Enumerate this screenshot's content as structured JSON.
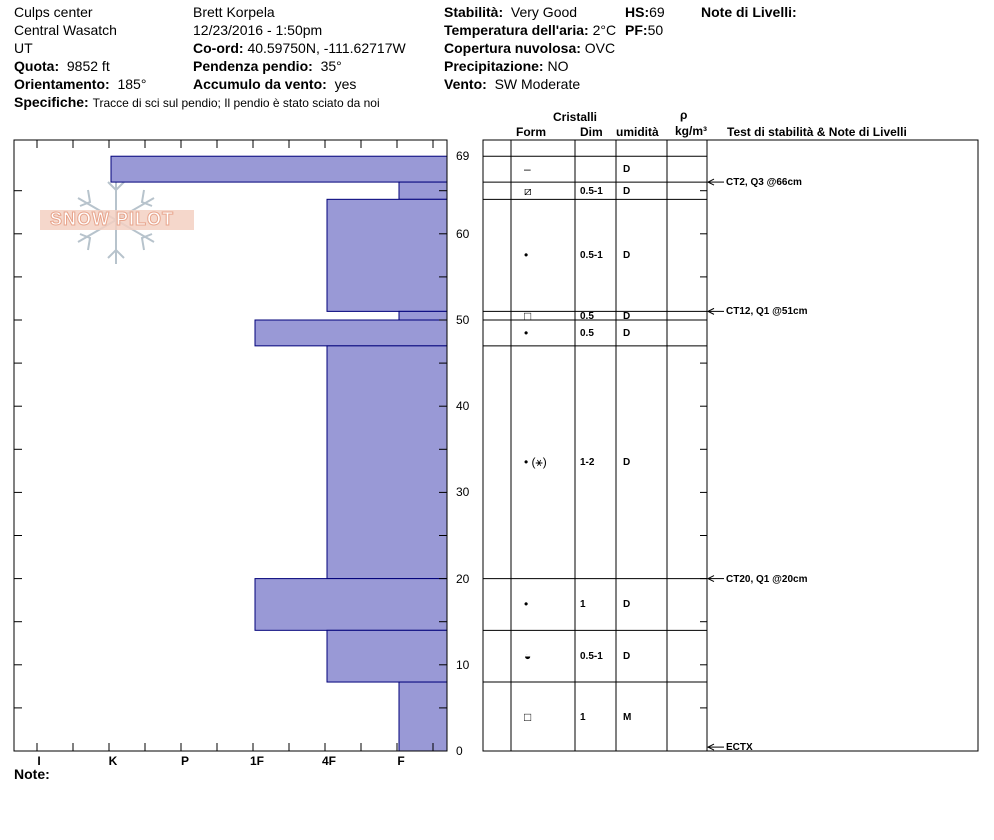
{
  "header": {
    "location": "Culps center",
    "range": "Central Wasatch",
    "state": "UT",
    "observer": "Brett  Korpela",
    "datetime": "12/23/2016 - 1:50pm",
    "coord_label": "Co-ord:",
    "coord_value": "40.59750N, -111.62717W",
    "elev_label": "Quota:",
    "elev_value": "9852 ft",
    "slope_label": "Pendenza pendio:",
    "slope_value": "35°",
    "aspect_label": "Orientamento:",
    "aspect_value": "185°",
    "wind_load_label": "Accumulo da vento:",
    "wind_load_value": "yes",
    "specifics_label": "Specifiche:",
    "specifics_value": "Tracce di sci sul pendio;  Il pendio è stato sciato da noi",
    "stability_label": "Stabilità:",
    "stability_value": "Very Good",
    "air_temp_label": "Temperatura dell'aria:",
    "air_temp_value": "2°C",
    "cloud_label": "Copertura nuvolosa:",
    "cloud_value": "OVC",
    "precip_label": "Precipitazione:",
    "precip_value": "NO",
    "wind_label": "Vento:",
    "wind_value": "SW Moderate",
    "hs_label": "HS:",
    "hs_value": "69",
    "pf_label": "PF:",
    "pf_value": "50",
    "layer_notes_label": "Note di Livelli:"
  },
  "logo_text": "SNOW PILOT",
  "table_headers": {
    "crystals": "Cristalli",
    "form": "Form",
    "size": "Dim",
    "moisture": "umidità",
    "rho": "ρ",
    "density_unit": "kg/m³",
    "tests": "Test di stabilità & Note di Livelli"
  },
  "hardness_labels": [
    "I",
    "K",
    "P",
    "1F",
    "4F",
    "F"
  ],
  "depth_ticks": [
    "69",
    "60",
    "50",
    "40",
    "30",
    "20",
    "10",
    "0"
  ],
  "note_label": "Note:",
  "layers": [
    {
      "top": 69,
      "bottom": 66,
      "form": "–",
      "size": "",
      "moisture": "D",
      "hardness": "K"
    },
    {
      "top": 66,
      "bottom": 64,
      "form": "⧄",
      "size": "0.5-1",
      "moisture": "D",
      "hardness": "F"
    },
    {
      "top": 64,
      "bottom": 51,
      "form": "•",
      "size": "0.5-1",
      "moisture": "D",
      "hardness": "4F"
    },
    {
      "top": 51,
      "bottom": 50,
      "form": "□",
      "size": "0.5",
      "moisture": "D",
      "hardness": "F"
    },
    {
      "top": 50,
      "bottom": 47,
      "form": "•",
      "size": "0.5",
      "moisture": "D",
      "hardness": "1F"
    },
    {
      "top": 47,
      "bottom": 20,
      "form": "• (⚹)",
      "size": "1-2",
      "moisture": "D",
      "hardness": "4F"
    },
    {
      "top": 20,
      "bottom": 14,
      "form": "•",
      "size": "1",
      "moisture": "D",
      "hardness": "1F"
    },
    {
      "top": 14,
      "bottom": 8,
      "form": "◒",
      "size": "0.5-1",
      "moisture": "D",
      "hardness": "4F"
    },
    {
      "top": 8,
      "bottom": 0,
      "form": "□",
      "size": "1",
      "moisture": "M",
      "hardness": "F"
    }
  ],
  "tests": [
    {
      "depth": 66,
      "label": "CT2, Q3 @66cm"
    },
    {
      "depth": 51,
      "label": "CT12, Q1 @51cm"
    },
    {
      "depth": 20,
      "label": "CT20, Q1 @20cm"
    },
    {
      "depth": 0.8,
      "label": "ECTX"
    }
  ],
  "colors": {
    "bar_fill": "#9999d6",
    "bar_stroke": "#00007a",
    "logo": "#e8a58d"
  }
}
